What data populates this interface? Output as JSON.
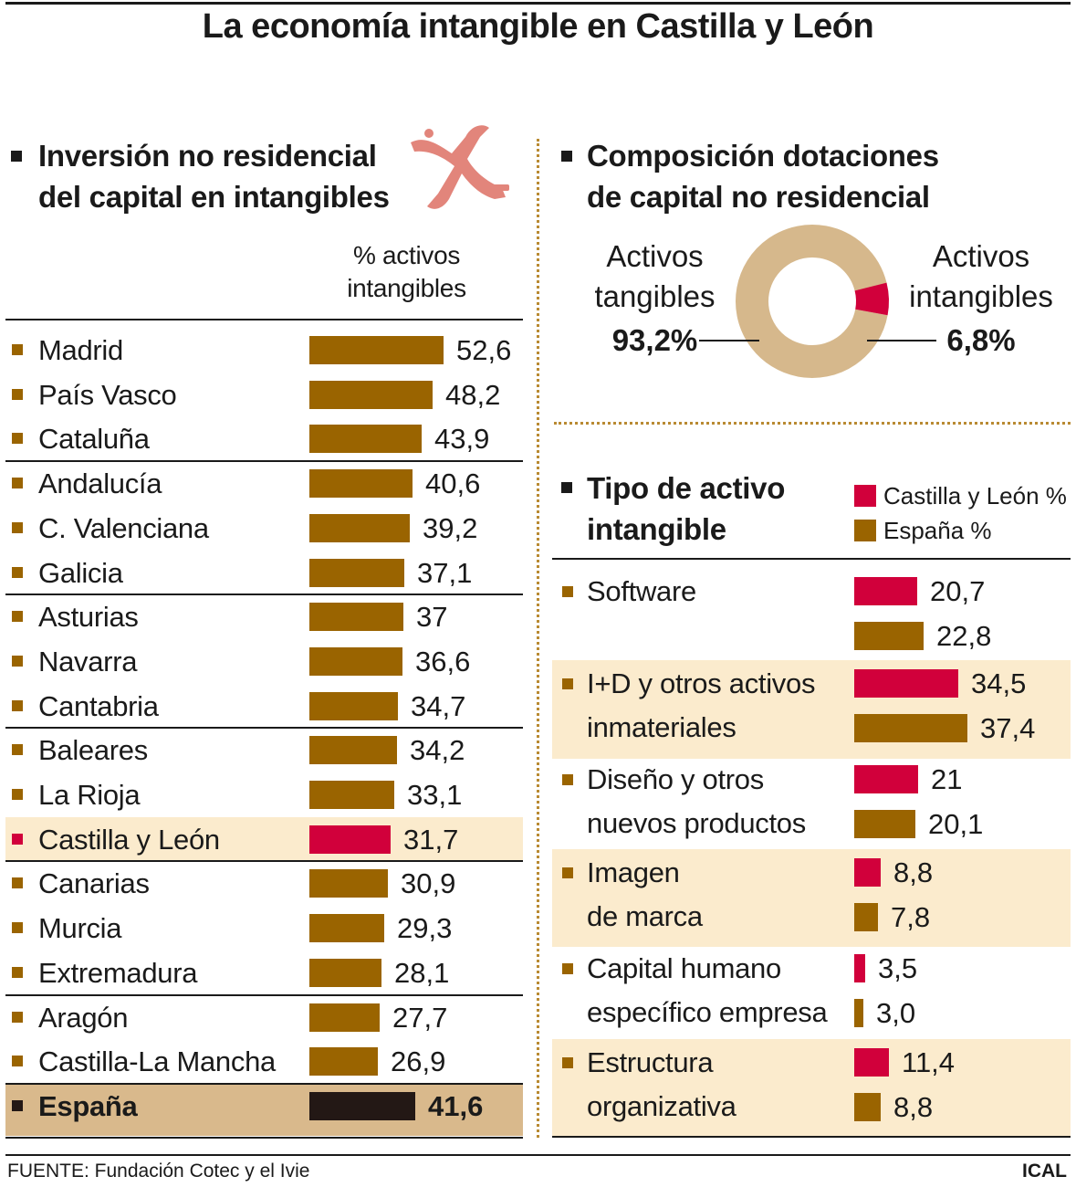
{
  "title": "La economía intangible en Castilla y León",
  "colors": {
    "espana": "#9a6400",
    "castilla": "#d1003b",
    "total": "#231815",
    "tangible": "#d6b88c",
    "highlight": "#fbebcd",
    "total_row_bg": "#d9b98c",
    "logo": "#e2857b"
  },
  "left": {
    "title_line1": "Inversión no residencial",
    "title_line2": "del capital en intangibles",
    "col_header_line1": "% activos",
    "col_header_line2": "intangibles"
  },
  "right_top": {
    "title_line1": "Composición dotaciones",
    "title_line2": "de capital no residencial",
    "tangible_label_line1": "Activos",
    "tangible_label_line2": "tangibles",
    "tangible_value": "93,2%",
    "intangible_label_line1": "Activos",
    "intangible_label_line2": "intangibles",
    "intangible_value": "6,8%"
  },
  "right_bottom": {
    "title_line1": "Tipo de activo",
    "title_line2": "intangible",
    "legend_cyl": "Castilla y León %",
    "legend_esp": "España %"
  },
  "footer": {
    "source": "FUENTE: Fundación Cotec y el Ivie",
    "credit": "ICAL"
  },
  "chart_data": [
    {
      "type": "bar",
      "title": "Inversión no residencial del capital en intangibles",
      "ylabel": "% activos intangibles",
      "categories": [
        "Madrid",
        "País Vasco",
        "Cataluña",
        "Andalucía",
        "C. Valenciana",
        "Galicia",
        "Asturias",
        "Navarra",
        "Cantabria",
        "Baleares",
        "La Rioja",
        "Castilla y León",
        "Canarias",
        "Murcia",
        "Extremadura",
        "Aragón",
        "Castilla-La Mancha",
        "España"
      ],
      "values": [
        52.6,
        48.2,
        43.9,
        40.6,
        39.2,
        37.1,
        37,
        36.6,
        34.7,
        34.2,
        33.1,
        31.7,
        30.9,
        29.3,
        28.1,
        27.7,
        26.9,
        41.6
      ],
      "value_labels": [
        "52,6",
        "48,2",
        "43,9",
        "40,6",
        "39,2",
        "37,1",
        "37",
        "36,6",
        "34,7",
        "34,2",
        "33,1",
        "31,7",
        "30,9",
        "29,3",
        "28,1",
        "27,7",
        "26,9",
        "41,6"
      ],
      "highlight": "Castilla y León",
      "total": "España"
    },
    {
      "type": "pie",
      "title": "Composición dotaciones de capital no residencial",
      "labels": [
        "Activos tangibles",
        "Activos intangibles"
      ],
      "values": [
        93.2,
        6.8
      ]
    },
    {
      "type": "bar",
      "title": "Tipo de activo intangible",
      "categories": [
        [
          "Software"
        ],
        [
          "I+D y otros activos",
          "inmateriales"
        ],
        [
          "Diseño y otros",
          "nuevos productos"
        ],
        [
          "Imagen",
          "de marca"
        ],
        [
          "Capital humano",
          "específico empresa"
        ],
        [
          "Estructura",
          "organizativa"
        ]
      ],
      "series": [
        {
          "name": "Castilla y León %",
          "values": [
            20.7,
            34.5,
            21,
            8.8,
            3.5,
            11.4
          ],
          "labels": [
            "20,7",
            "34,5",
            "21",
            "8,8",
            "3,5",
            "11,4"
          ]
        },
        {
          "name": "España %",
          "values": [
            22.8,
            37.4,
            20.1,
            7.8,
            3.0,
            8.8
          ],
          "labels": [
            "22,8",
            "37,4",
            "20,1",
            "7,8",
            "3,0",
            "8,8"
          ]
        }
      ]
    }
  ]
}
